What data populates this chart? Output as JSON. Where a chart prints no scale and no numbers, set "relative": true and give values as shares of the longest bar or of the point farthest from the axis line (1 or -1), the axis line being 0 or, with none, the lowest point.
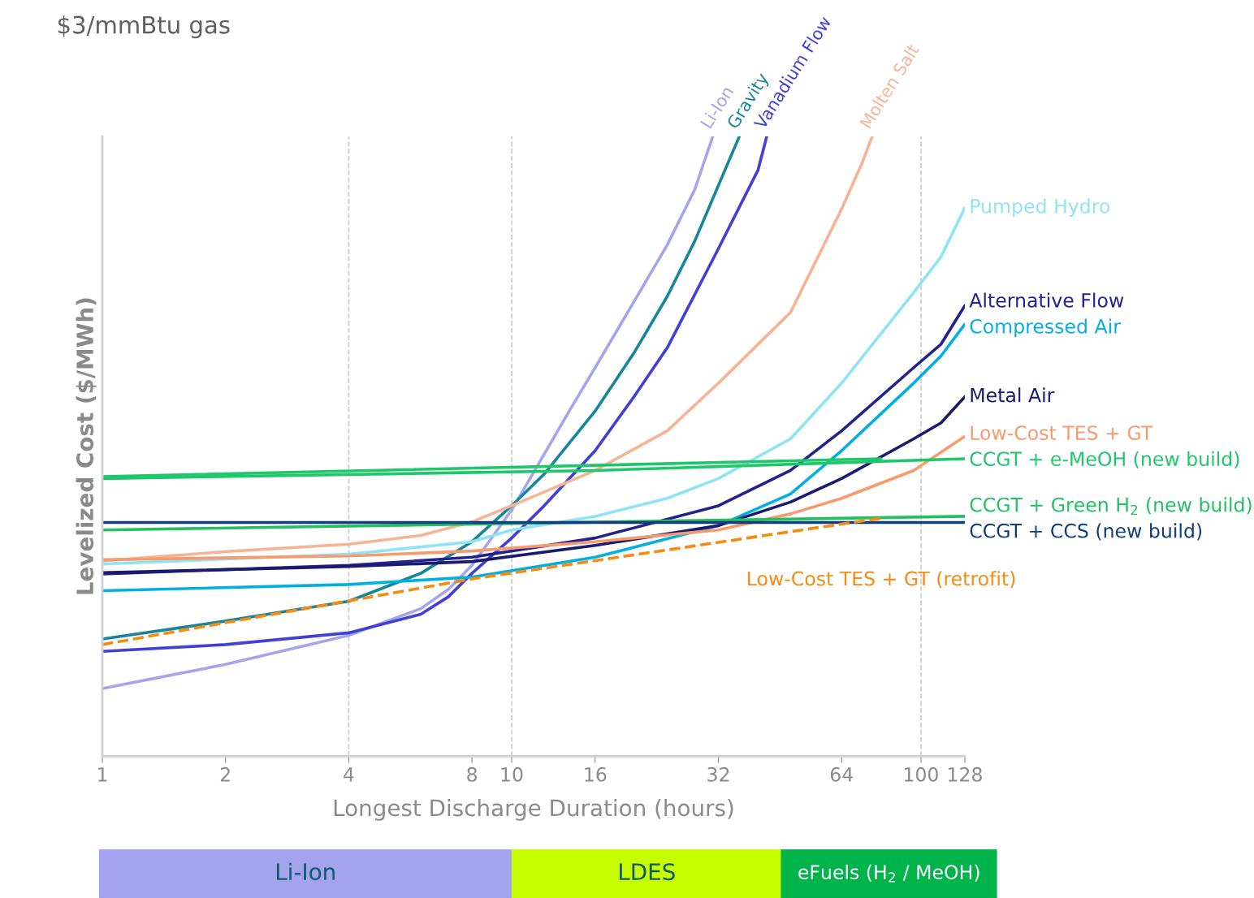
{
  "chart_data": [
    {
      "type": "line",
      "title": "$3/mmBtu gas",
      "xlabel": "Longest Discharge Duration (hours)",
      "ylabel": "Levelized Cost ($/MWh)",
      "relative": true,
      "log": "x",
      "xlim": [
        1,
        128
      ],
      "xticks": [
        1,
        2,
        4,
        8,
        10,
        16,
        32,
        64,
        100,
        128
      ],
      "ref_lines": [
        {
          "axis": "x",
          "value": 4,
          "color": "#cccccc",
          "line_style": "dashed"
        },
        {
          "axis": "x",
          "value": 10,
          "color": "#cccccc",
          "line_style": "dashed"
        },
        {
          "axis": "x",
          "value": 100,
          "color": "#cccccc",
          "line_style": "dashed"
        }
      ],
      "legend": false,
      "grid": false,
      "tick_labels": "x",
      "series": [
        {
          "name": "Li-Ion",
          "color": "#a5a5ee",
          "x": [
            1,
            2,
            4,
            6,
            7,
            8,
            10,
            12,
            14,
            16,
            20,
            24,
            28,
            31
          ],
          "values": [
            0.109,
            0.148,
            0.195,
            0.238,
            0.269,
            0.308,
            0.397,
            0.487,
            0.563,
            0.627,
            0.736,
            0.825,
            0.914,
            1.0
          ]
        },
        {
          "name": "Gravity",
          "color": "#16869c",
          "x": [
            1,
            2,
            4,
            6,
            8,
            10,
            12,
            16,
            20,
            24,
            28,
            32,
            36
          ],
          "values": [
            0.189,
            0.218,
            0.25,
            0.295,
            0.346,
            0.404,
            0.455,
            0.557,
            0.653,
            0.742,
            0.831,
            0.921,
            1.0
          ]
        },
        {
          "name": "Vanadium Flow",
          "color": "#4040d8",
          "x": [
            1,
            2,
            4,
            6,
            7,
            8,
            10,
            12,
            16,
            20,
            24,
            32,
            40,
            42
          ],
          "values": [
            0.169,
            0.18,
            0.199,
            0.229,
            0.257,
            0.295,
            0.352,
            0.404,
            0.493,
            0.582,
            0.659,
            0.819,
            0.946,
            1.0
          ]
        },
        {
          "name": "Molten Salt",
          "color": "#f7b495",
          "x": [
            1,
            2,
            4,
            6,
            8,
            10,
            16,
            24,
            32,
            48,
            64,
            72,
            76
          ],
          "values": [
            0.315,
            0.33,
            0.342,
            0.356,
            0.378,
            0.404,
            0.461,
            0.525,
            0.602,
            0.716,
            0.883,
            0.959,
            1.0
          ]
        },
        {
          "name": "Pumped Hydro",
          "color": "#8fe3f7",
          "x": [
            1,
            4,
            8,
            10,
            16,
            24,
            32,
            48,
            64,
            96,
            112,
            128
          ],
          "values": [
            0.31,
            0.326,
            0.346,
            0.365,
            0.387,
            0.416,
            0.448,
            0.512,
            0.602,
            0.748,
            0.806,
            0.885
          ]
        },
        {
          "name": "Alternative Flow",
          "color": "#232390",
          "x": [
            1,
            4,
            8,
            16,
            32,
            48,
            64,
            96,
            112,
            128
          ],
          "values": [
            0.294,
            0.308,
            0.321,
            0.352,
            0.404,
            0.461,
            0.525,
            0.627,
            0.665,
            0.727
          ]
        },
        {
          "name": "Compressed Air",
          "color": "#00b0e0",
          "x": [
            1,
            4,
            8,
            16,
            32,
            48,
            64,
            96,
            112,
            128
          ],
          "values": [
            0.267,
            0.277,
            0.289,
            0.321,
            0.372,
            0.423,
            0.493,
            0.602,
            0.646,
            0.697
          ]
        },
        {
          "name": "Metal Air",
          "color": "#1a1a6e",
          "x": [
            1,
            4,
            8,
            16,
            32,
            48,
            64,
            96,
            112,
            128
          ],
          "values": [
            0.296,
            0.306,
            0.314,
            0.34,
            0.372,
            0.41,
            0.448,
            0.512,
            0.538,
            0.58
          ]
        },
        {
          "name": "Low-Cost TES + GT",
          "color": "#f79a6e",
          "x": [
            1,
            4,
            8,
            16,
            32,
            48,
            64,
            96,
            128
          ],
          "values": [
            0.317,
            0.323,
            0.331,
            0.346,
            0.365,
            0.391,
            0.416,
            0.461,
            0.516
          ]
        },
        {
          "name": "CCGT + e-MeOH (new build)",
          "color": "#1ec86a",
          "x": [
            1,
            16,
            128
          ],
          "values": [
            0.448,
            0.461,
            0.48
          ]
        },
        {
          "color": "#1ec86a",
          "x": [
            1,
            80
          ],
          "values": [
            0.451,
            0.48
          ]
        },
        {
          "name": "CCGT + Green H$_{2}$ (new build)",
          "color": "#22c060",
          "x": [
            1,
            128
          ],
          "values": [
            0.365,
            0.387
          ]
        },
        {
          "name": "CCGT + CCS (new build)",
          "color": "#103c80",
          "x": [
            1,
            128
          ],
          "values": [
            0.377,
            0.377
          ]
        },
        {
          "name": "Low-Cost TES + GT (retrofit)",
          "color": "#f78a10",
          "line_style": "dashed",
          "x": [
            1,
            8,
            80
          ],
          "values": [
            0.18,
            0.286,
            0.384
          ]
        }
      ]
    },
    {
      "type": "other",
      "annotations": [
        "Li-Ion",
        "LDES",
        "eFuels (H$_{2}$ / MeOH)"
      ],
      "colors": [
        "#a3a3ee",
        "#c8ff00",
        "#00b34a"
      ]
    }
  ]
}
